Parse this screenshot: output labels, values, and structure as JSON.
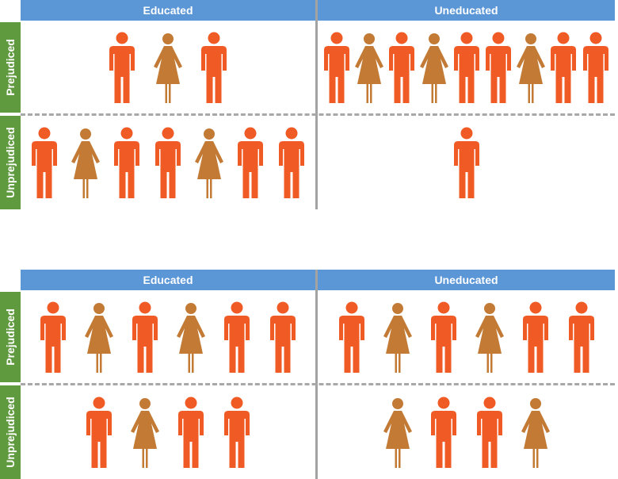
{
  "colors": {
    "man": "#f05a24",
    "woman": "#c27a35",
    "header": "#5b96d6",
    "side": "#5f9a3e",
    "divider": "#a3a3a3"
  },
  "icons": {
    "man": "man-icon",
    "woman": "woman-icon"
  },
  "panels": [
    {
      "columns": [
        "Educated",
        "Uneducated"
      ],
      "rows": [
        "Prejudiced",
        "Unprejudiced"
      ],
      "cells": [
        [
          [
            "man",
            "woman",
            "man"
          ],
          [
            "man",
            "woman",
            "man",
            "woman",
            "man",
            "man",
            "woman",
            "man",
            "man"
          ]
        ],
        [
          [
            "man",
            "woman",
            "man",
            "man",
            "woman",
            "man",
            "man"
          ],
          [
            "man"
          ]
        ]
      ]
    },
    {
      "columns": [
        "Educated",
        "Uneducated"
      ],
      "rows": [
        "Prejudiced",
        "Unprejudiced"
      ],
      "cells": [
        [
          [
            "man",
            "woman",
            "man",
            "woman",
            "man",
            "man"
          ],
          [
            "man",
            "woman",
            "man",
            "woman",
            "man",
            "man"
          ]
        ],
        [
          [
            "man",
            "woman",
            "man",
            "man"
          ],
          [
            "woman",
            "man",
            "man",
            "woman"
          ]
        ]
      ]
    }
  ]
}
